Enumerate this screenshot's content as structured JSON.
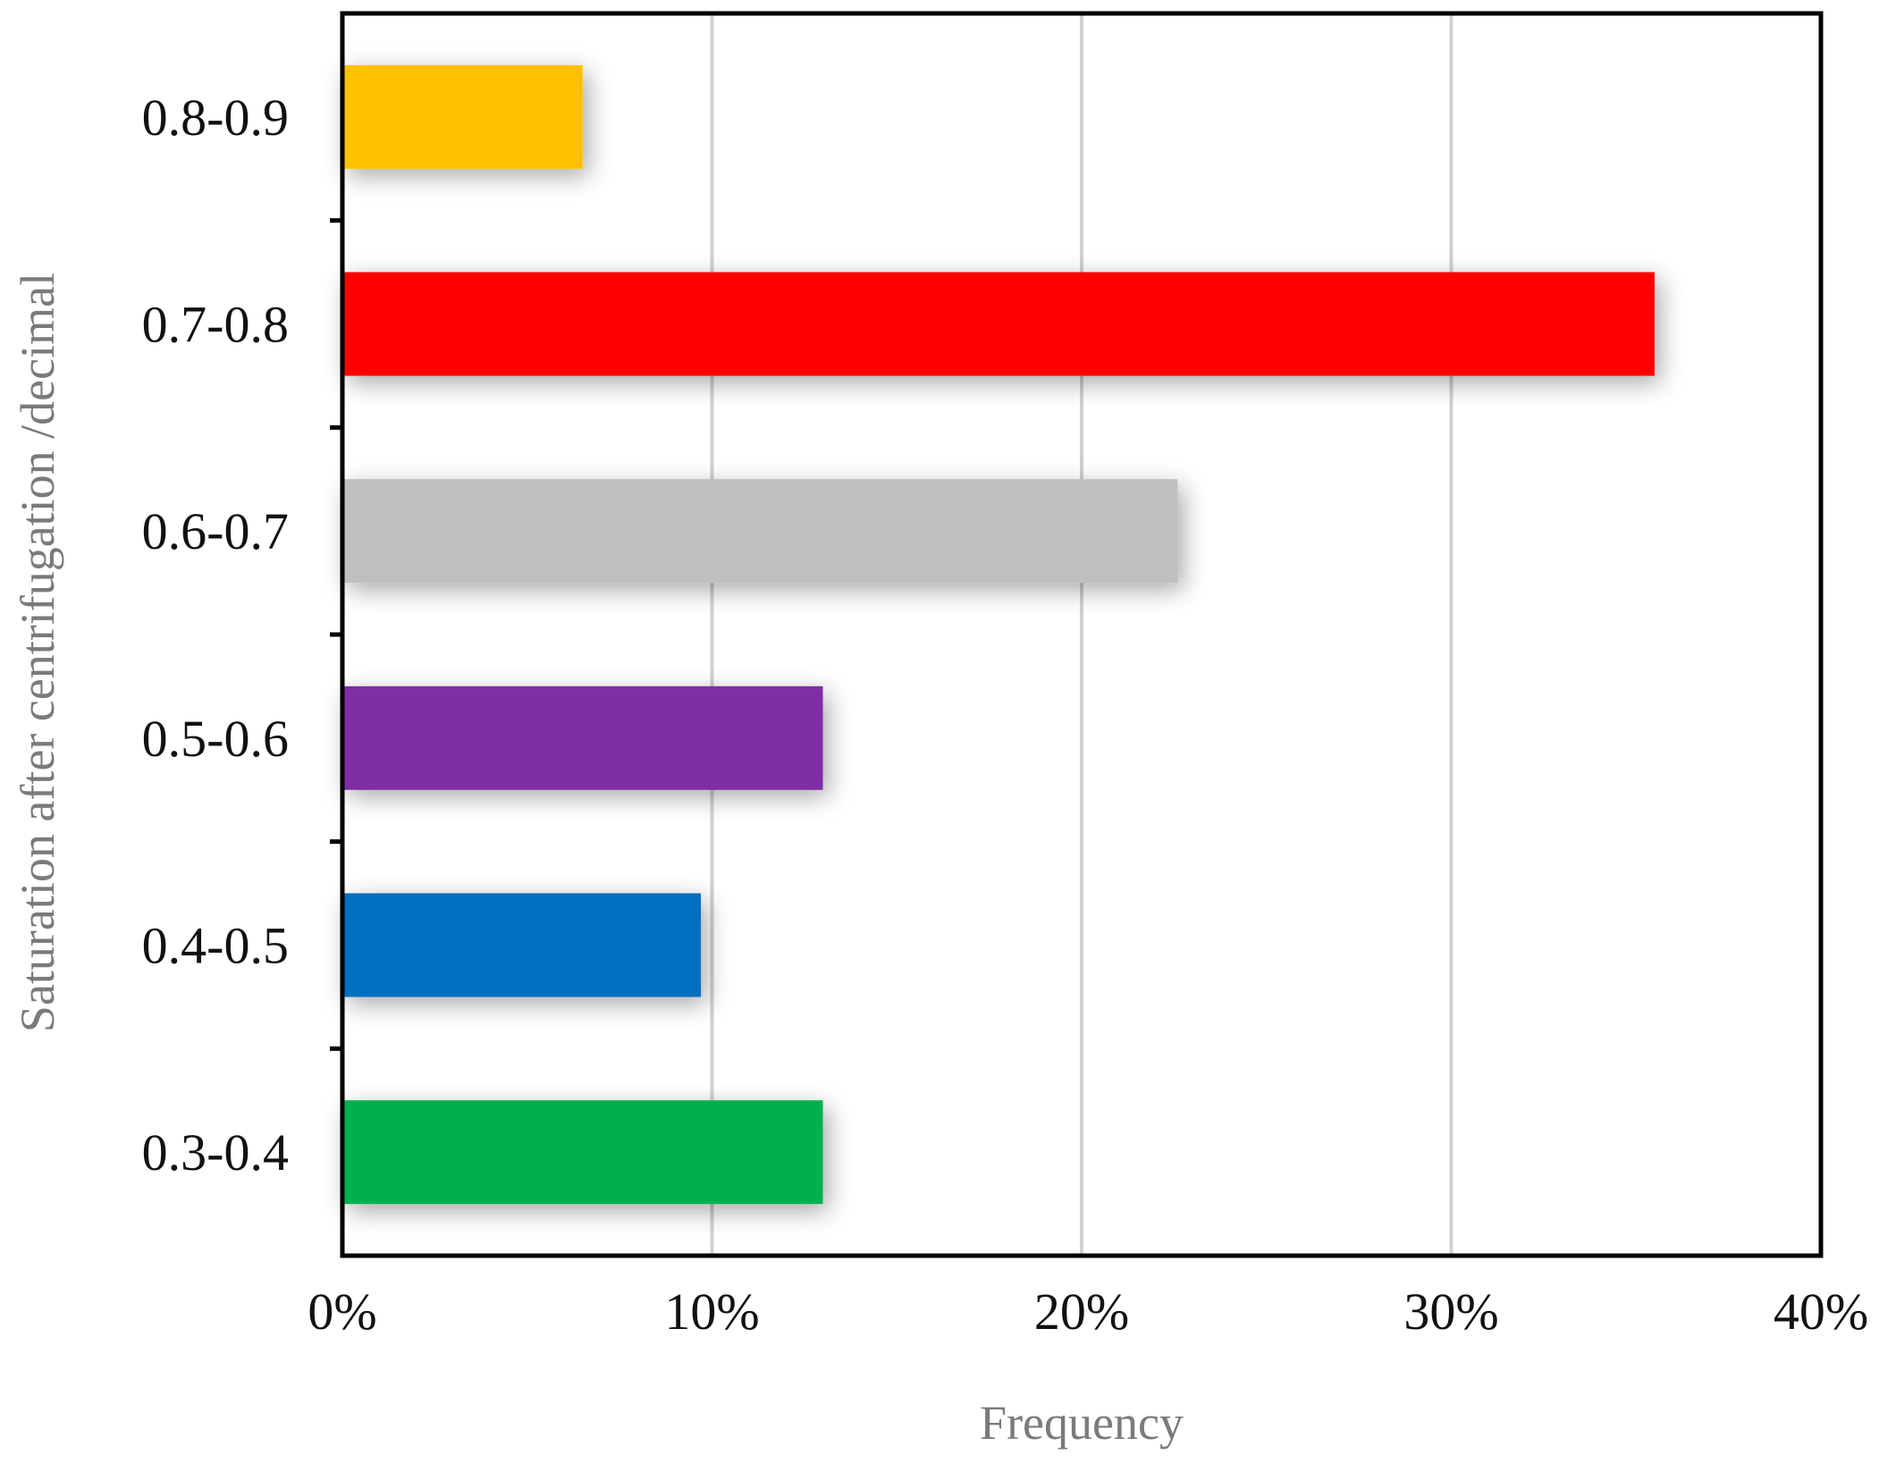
{
  "chart_data": {
    "type": "bar",
    "orientation": "horizontal",
    "categories": [
      "0.3-0.4",
      "0.4-0.5",
      "0.5-0.6",
      "0.6-0.7",
      "0.7-0.8",
      "0.8-0.9"
    ],
    "values": [
      13,
      9.7,
      13,
      22.6,
      35.5,
      6.5
    ],
    "bar_colors": [
      "#00B050",
      "#0070C0",
      "#7F2FA3",
      "#BFBFBF",
      "#FF0000",
      "#FFC000"
    ],
    "xlabel": "Frequency",
    "ylabel": "Saturation after centrifugation /decimal",
    "xlim": [
      0,
      40
    ],
    "x_ticks": [
      0,
      10,
      20,
      30,
      40
    ],
    "x_tick_labels": [
      "0%",
      "10%",
      "20%",
      "30%",
      "40%"
    ],
    "grid": "vertical",
    "legend": "none",
    "grid_color": "#D0D0D0",
    "axis_color": "#000000"
  }
}
